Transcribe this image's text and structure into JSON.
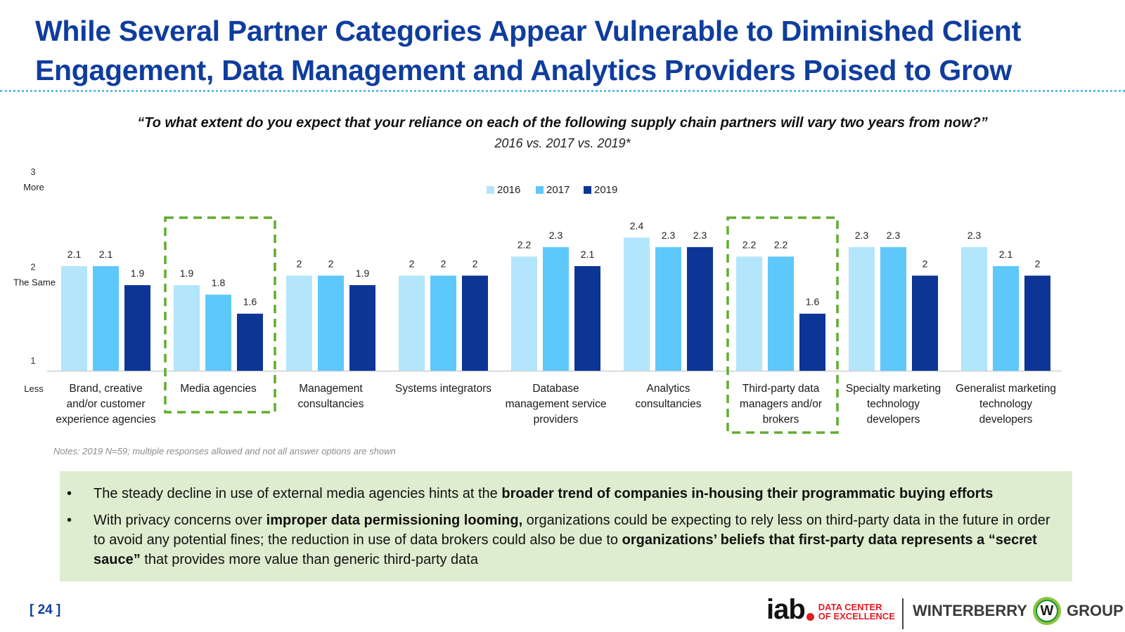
{
  "slide": {
    "title_line1": "While Several Partner Categories Appear Vulnerable to Diminished Client",
    "title_line2": "Engagement, Data Management and Analytics Providers Poised to Grow",
    "question": "“To what extent do you expect that your reliance on each of the following supply chain partners will vary two years from now?”",
    "subquestion": "2016 vs. 2017 vs. 2019*",
    "notes": "Notes: 2019 N=59; multiple responses allowed and not all answer options are shown",
    "page_number": "[ 24 ]"
  },
  "colors": {
    "title": "#0f3d9e",
    "series_2016": "#b3e5fc",
    "series_2017": "#5ec8fa",
    "series_2019": "#0d3596",
    "highlight_box": "#5fad2e",
    "insight_bg": "#deedcf"
  },
  "chart_data": {
    "type": "bar",
    "title": "",
    "xlabel": "",
    "ylabel": "",
    "ylim": [
      1,
      3
    ],
    "yticks": [
      {
        "value": 3,
        "label": "3",
        "sublabel": "More"
      },
      {
        "value": 2,
        "label": "2",
        "sublabel": "The Same"
      },
      {
        "value": 1,
        "label": "1",
        "sublabel": "Less"
      }
    ],
    "categories": [
      "Brand, creative and/or customer experience agencies",
      "Media agencies",
      "Management consultancies",
      "Systems integrators",
      "Database management service providers",
      "Analytics consultancies",
      "Third-party data managers and/or brokers",
      "Specialty marketing technology developers",
      "Generalist marketing technology developers"
    ],
    "category_lines": [
      [
        "Brand, creative",
        "and/or customer",
        "experience agencies"
      ],
      [
        "Media agencies"
      ],
      [
        "Management",
        "consultancies"
      ],
      [
        "Systems integrators"
      ],
      [
        "Database",
        "management service",
        "providers"
      ],
      [
        "Analytics",
        "consultancies"
      ],
      [
        "Third-party data",
        "managers and/or",
        "brokers"
      ],
      [
        "Specialty marketing",
        "technology",
        "developers"
      ],
      [
        "Generalist marketing",
        "technology",
        "developers"
      ]
    ],
    "highlighted_categories": [
      "Media agencies",
      "Third-party data managers and/or brokers"
    ],
    "series": [
      {
        "name": "2016",
        "values": [
          2.1,
          1.9,
          2,
          2,
          2.2,
          2.4,
          2.2,
          2.3,
          2.3
        ]
      },
      {
        "name": "2017",
        "values": [
          2.1,
          1.8,
          2,
          2,
          2.3,
          2.3,
          2.2,
          2.3,
          2.1
        ]
      },
      {
        "name": "2019",
        "values": [
          1.9,
          1.6,
          1.9,
          2,
          2.1,
          2.3,
          1.6,
          2,
          2
        ]
      }
    ],
    "legend_position": "top-center"
  },
  "insights": [
    {
      "parts": [
        {
          "text": "The steady decline in use of external media agencies hints at the ",
          "bold": false
        },
        {
          "text": "broader trend of companies in-housing their programmatic buying efforts",
          "bold": true
        }
      ]
    },
    {
      "parts": [
        {
          "text": "With privacy concerns over ",
          "bold": false
        },
        {
          "text": "improper data permissioning looming,",
          "bold": true
        },
        {
          "text": " organizations could be expecting to rely less on third-party data in the future in order to avoid any potential fines; the reduction in use of data brokers could also be due to ",
          "bold": false
        },
        {
          "text": "organizations’ beliefs that first-party data represents a “secret sauce”",
          "bold": true
        },
        {
          "text": " that provides more value than generic third-party data",
          "bold": false
        }
      ]
    }
  ],
  "logos": {
    "iab_word": "iab",
    "iab_sub_line1": "DATA CENTER",
    "iab_sub_line2": "OF EXCELLENCE",
    "winterberry_left": "WINTERBERRY",
    "winterberry_mark": "W",
    "winterberry_right": "GROUP"
  }
}
